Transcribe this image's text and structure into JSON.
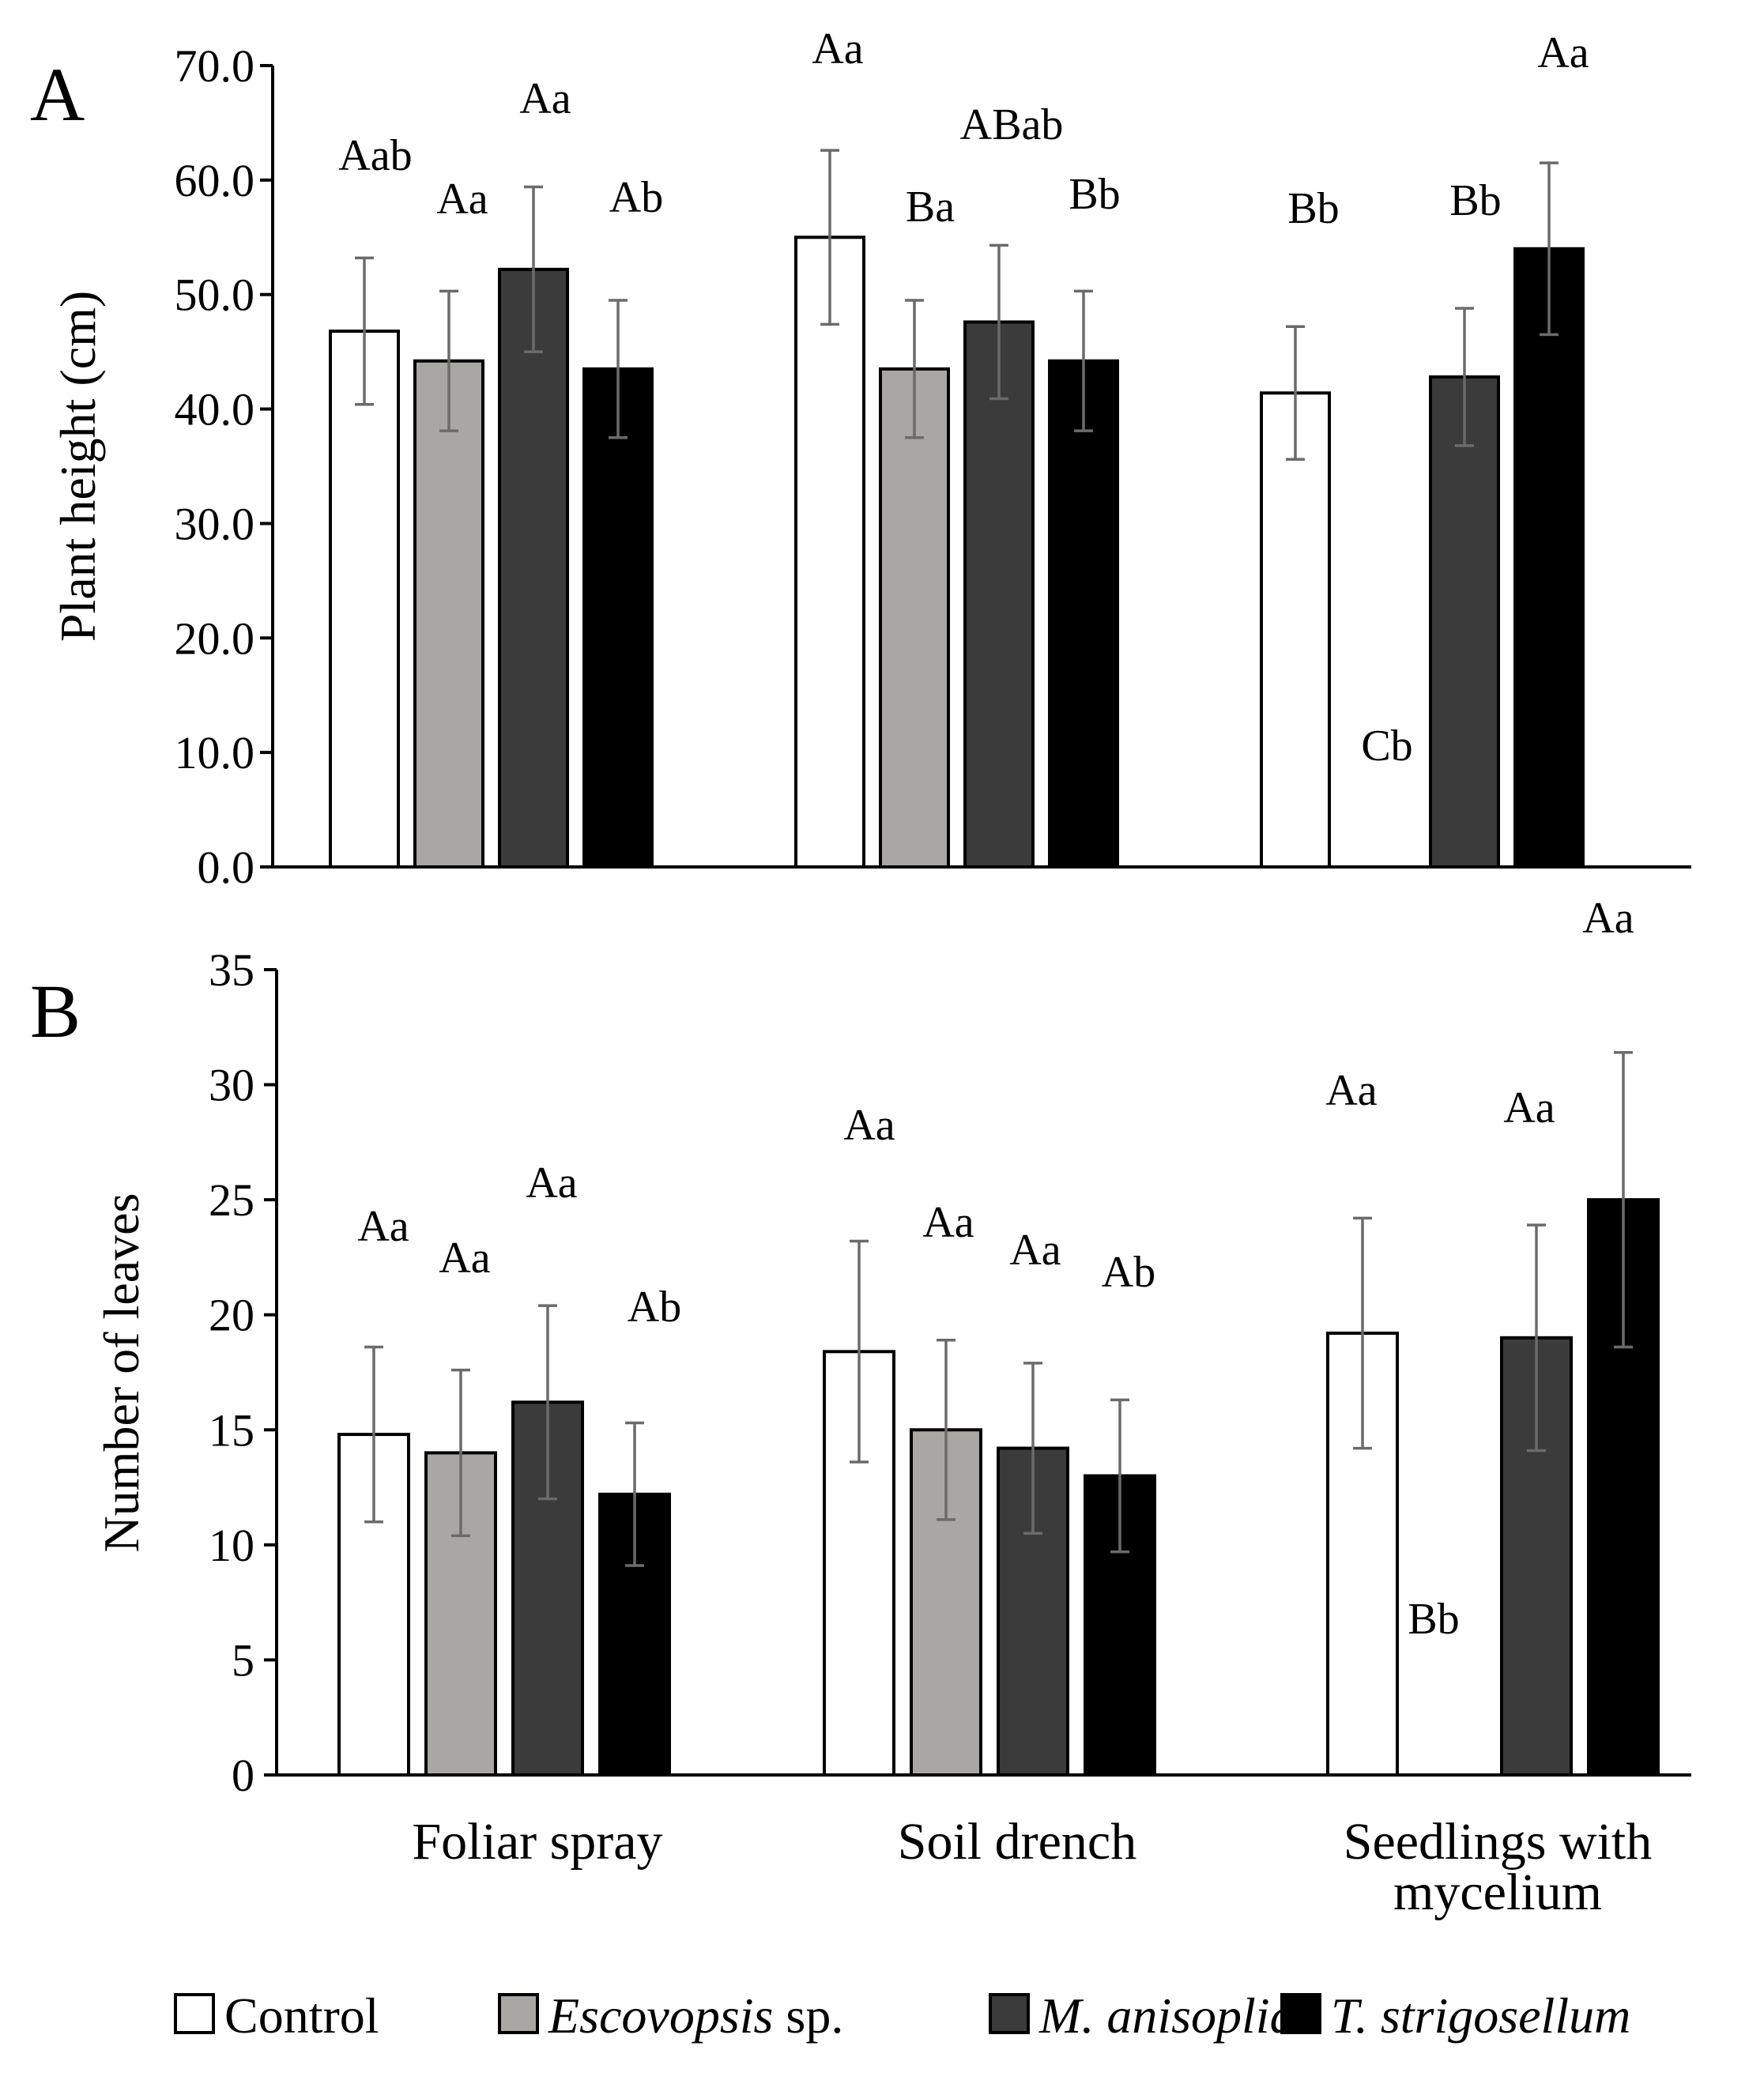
{
  "chart_data": [
    {
      "type": "bar",
      "panel_label": "A",
      "ylabel": "Plant height (cm)",
      "ylim": [
        0,
        70
      ],
      "yticks": [
        "0.0",
        "10.0",
        "20.0",
        "30.0",
        "40.0",
        "50.0",
        "60.0",
        "70.0"
      ],
      "categories": [
        "Foliar spray",
        "Soil drench",
        "Seedlings with mycelium"
      ],
      "series": [
        {
          "name": "Control",
          "color": "#ffffff",
          "values": [
            46.8,
            55.0,
            41.4
          ],
          "errors": [
            6.4,
            7.6,
            5.8
          ],
          "labels": [
            "Aab",
            "Aa",
            "Bb"
          ]
        },
        {
          "name": "Escovopsis sp.",
          "color": "#a9a7a3",
          "values": [
            44.2,
            43.5,
            0.0
          ],
          "errors": [
            6.1,
            6.0,
            0.0
          ],
          "labels": [
            "Aa",
            "Ba",
            "Cb"
          ]
        },
        {
          "name": "M. anisopliae",
          "color": "#3b3b3b",
          "values": [
            52.2,
            47.6,
            42.8
          ],
          "errors": [
            7.2,
            6.7,
            6.0
          ],
          "labels": [
            "Aa",
            "ABab",
            "Bb"
          ]
        },
        {
          "name": "T. strigosellum",
          "color": "#000000",
          "values": [
            43.5,
            44.2,
            54.0
          ],
          "errors": [
            6.0,
            6.1,
            7.5
          ],
          "labels": [
            "Ab",
            "Bb",
            "Aa"
          ]
        }
      ]
    },
    {
      "type": "bar",
      "panel_label": "B",
      "ylabel": "Number of leaves",
      "ylim": [
        0,
        35
      ],
      "yticks": [
        "0",
        "5",
        "10",
        "15",
        "20",
        "25",
        "30",
        "35"
      ],
      "categories": [
        "Foliar spray",
        "Soil drench",
        "Seedlings with mycelium"
      ],
      "series": [
        {
          "name": "Control",
          "color": "#ffffff",
          "values": [
            14.8,
            18.4,
            19.2
          ],
          "errors": [
            3.8,
            4.8,
            5.0
          ],
          "labels": [
            "Aa",
            "Aa",
            "Aa"
          ]
        },
        {
          "name": "Escovopsis sp.",
          "color": "#a9a7a3",
          "values": [
            14.0,
            15.0,
            0.0
          ],
          "errors": [
            3.6,
            3.9,
            0.0
          ],
          "labels": [
            "Aa",
            "Aa",
            "Bb"
          ]
        },
        {
          "name": "M. anisopliae",
          "color": "#3b3b3b",
          "values": [
            16.2,
            14.2,
            19.0
          ],
          "errors": [
            4.2,
            3.7,
            4.9
          ],
          "labels": [
            "Aa",
            "Aa",
            "Aa"
          ]
        },
        {
          "name": "T. strigosellum",
          "color": "#000000",
          "values": [
            12.2,
            13.0,
            25.0
          ],
          "errors": [
            3.1,
            3.3,
            6.4
          ],
          "labels": [
            "Ab",
            "Ab",
            "Aa"
          ]
        }
      ]
    }
  ],
  "x_category_lines": [
    [
      "Foliar spray"
    ],
    [
      "Soil drench"
    ],
    [
      "Seedlings with",
      "mycelium"
    ]
  ],
  "legend": [
    {
      "italic": "",
      "plain": "Control",
      "color": "#ffffff"
    },
    {
      "italic": "Escovopsis",
      "plain": " sp.",
      "color": "#a9a7a3"
    },
    {
      "italic": "M. anisopliae",
      "plain": "",
      "color": "#3b3b3b"
    },
    {
      "italic": "T. strigosellum",
      "plain": "",
      "color": "#000000"
    }
  ]
}
